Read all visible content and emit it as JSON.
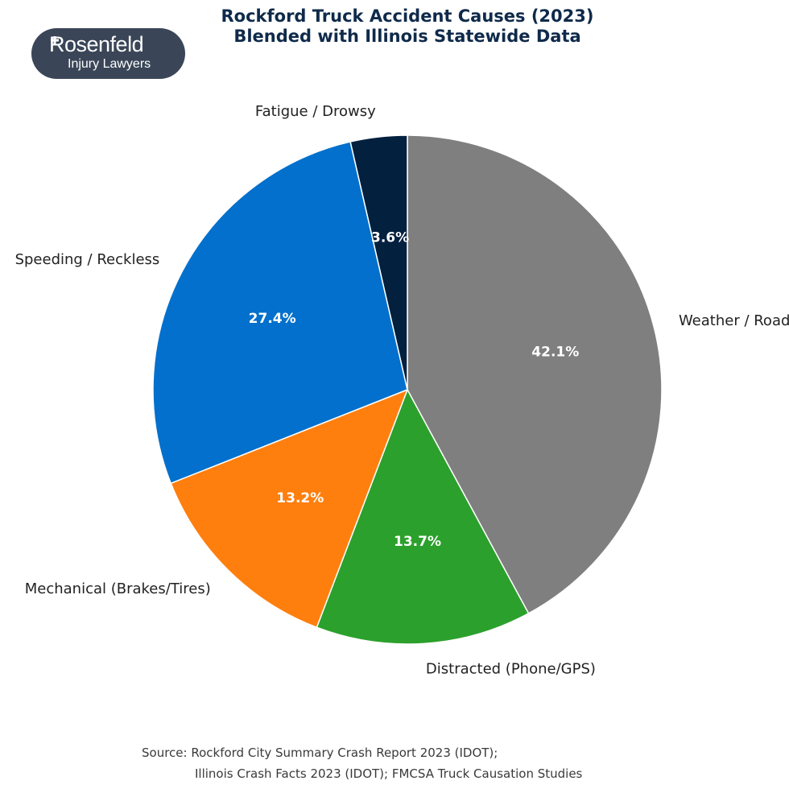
{
  "header": {
    "title_line1": "Rockford Truck Accident Causes (2023)",
    "title_line2": "Blended with Illinois Statewide Data"
  },
  "logo": {
    "name": "Rosenfeld",
    "tagline": "Injury Lawyers"
  },
  "chart_data": {
    "type": "pie",
    "title": "Rockford Truck Accident Causes (2023) — Blended with Illinois Statewide Data",
    "labels": [
      "Weather / Road",
      "Distracted (Phone/GPS)",
      "Mechanical (Brakes/Tires)",
      "Speeding / Reckless",
      "Fatigue / Drowsy"
    ],
    "values": [
      42.1,
      13.7,
      13.2,
      27.4,
      3.6
    ],
    "value_labels": [
      "42.1%",
      "13.7%",
      "13.2%",
      "27.4%",
      "3.6%"
    ],
    "colors": [
      "#7f7f7f",
      "#2ca02c",
      "#ff7f0e",
      "#0270cc",
      "#03203f"
    ],
    "start": "12 o'clock",
    "direction": "clockwise",
    "legend": "none (direct labels)"
  },
  "footer": {
    "source_line1": "Source: Rockford City Summary Crash Report 2023 (IDOT);",
    "source_line2": "Illinois Crash Facts 2023 (IDOT); FMCSA Truck Causation Studies"
  }
}
